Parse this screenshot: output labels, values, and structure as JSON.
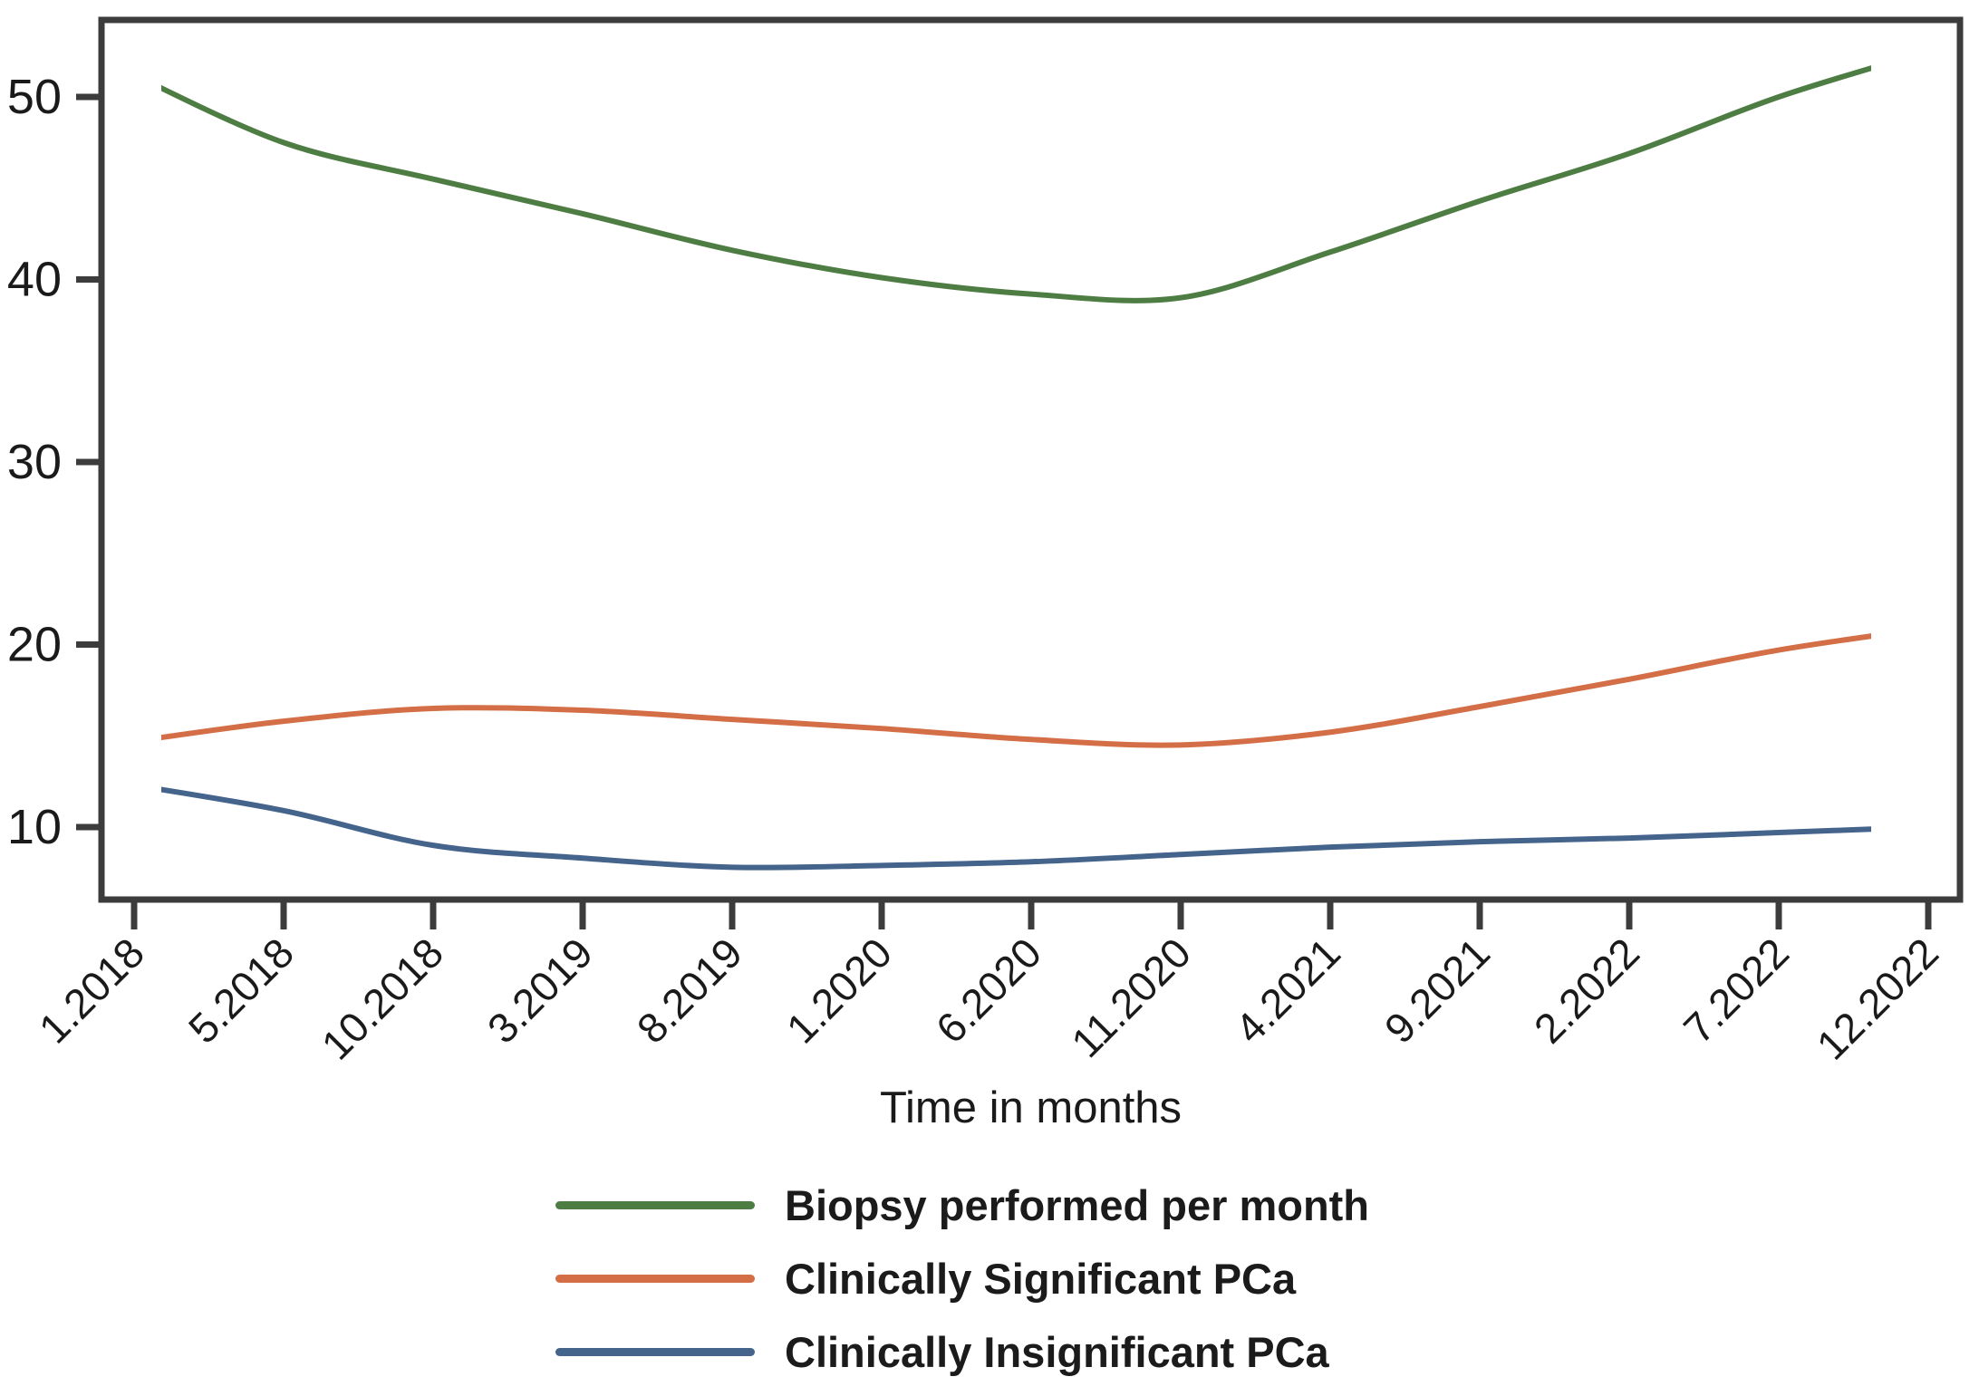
{
  "chart_data": {
    "type": "line",
    "title": "",
    "xlabel": "Time in months",
    "ylabel": "",
    "categories": [
      "1.2018",
      "5.2018",
      "10.2018",
      "3.2019",
      "8.2019",
      "1.2020",
      "6.2020",
      "11.2020",
      "4.2021",
      "9.2021",
      "2.2022",
      "7.2022",
      "12.2022"
    ],
    "y_ticks": [
      10,
      20,
      30,
      40,
      50
    ],
    "ylim": [
      6,
      54.2
    ],
    "grid": false,
    "legend_position": "below",
    "smoothed": true,
    "series": [
      {
        "name": "Biopsy performed per month",
        "color": "#4e7d43",
        "values": [
          51.2,
          47.5,
          45.5,
          43.6,
          41.6,
          40.1,
          39.2,
          39.0,
          41.5,
          44.3,
          46.9,
          50.0,
          52.5
        ]
      },
      {
        "name": "Clinically Significant PCa",
        "color": "#d46e46",
        "values": [
          14.7,
          15.8,
          16.5,
          16.4,
          15.9,
          15.4,
          14.8,
          14.5,
          15.2,
          16.6,
          18.1,
          19.7,
          20.9
        ]
      },
      {
        "name": "Clinically Insignificant PCa",
        "color": "#44648c",
        "values": [
          12.3,
          10.9,
          9.0,
          8.3,
          7.8,
          7.9,
          8.1,
          8.5,
          8.9,
          9.2,
          9.4,
          9.7,
          10.0
        ]
      }
    ],
    "axis_color": "#3c3c3c",
    "text_color": "#1a1a1a"
  }
}
